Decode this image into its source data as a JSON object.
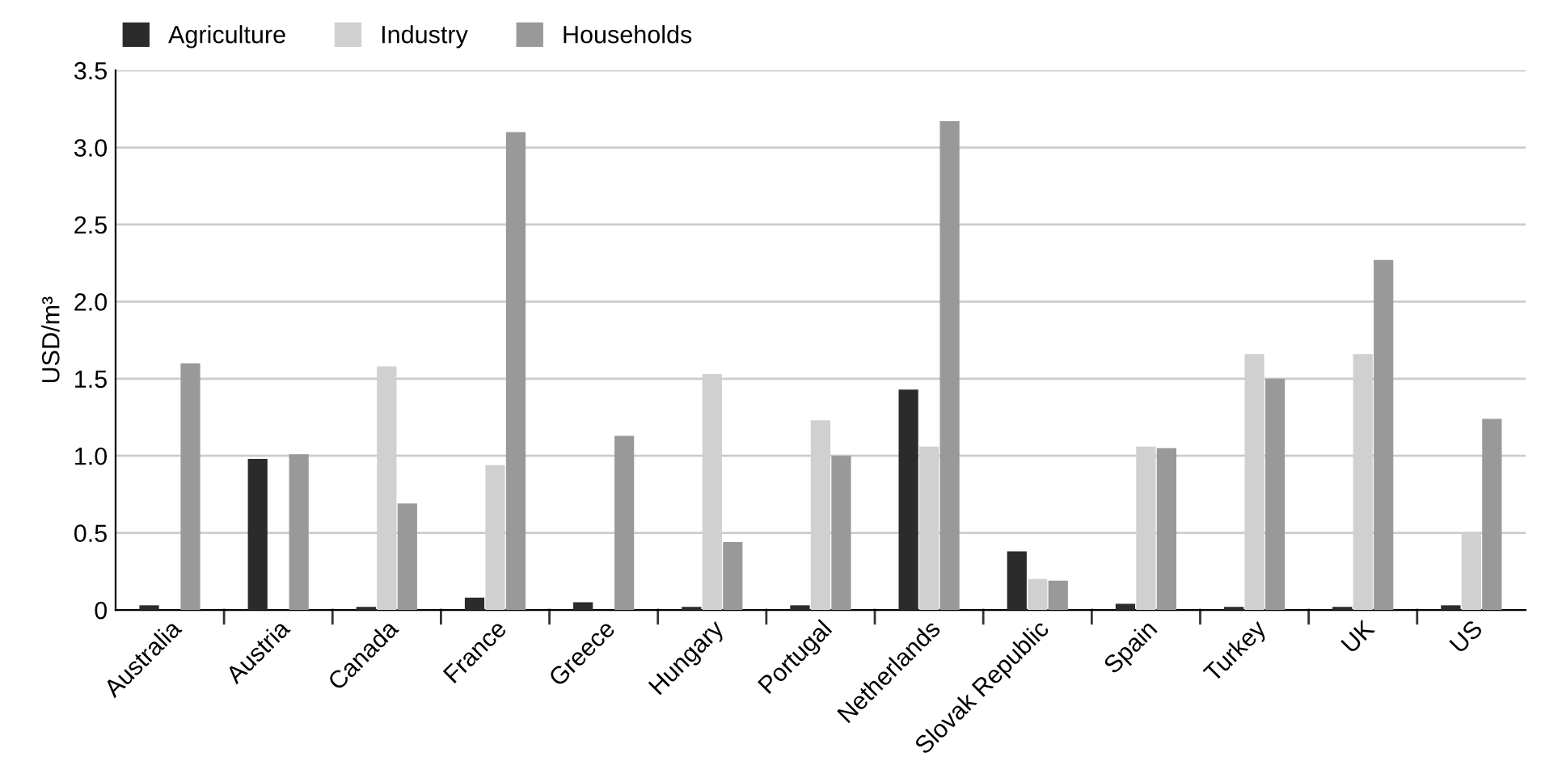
{
  "chart_data": {
    "type": "bar",
    "ylabel": "USD/m³",
    "categories": [
      "Australia",
      "Austria",
      "Canada",
      "France",
      "Greece",
      "Hungary",
      "Portugal",
      "Netherlands",
      "Slovak Republic",
      "Spain",
      "Turkey",
      "UK",
      "US"
    ],
    "series": [
      {
        "name": "Agriculture",
        "color": "#2b2b2b",
        "values": [
          0.03,
          0.98,
          0.02,
          0.08,
          0.05,
          0.02,
          0.03,
          1.43,
          0.38,
          0.04,
          0.02,
          0.02,
          0.03
        ]
      },
      {
        "name": "Industry",
        "color": "#d0d0d0",
        "values": [
          null,
          null,
          1.58,
          0.94,
          null,
          1.53,
          1.23,
          1.06,
          0.2,
          1.06,
          1.66,
          1.66,
          0.5
        ]
      },
      {
        "name": "Households",
        "color": "#999999",
        "values": [
          1.6,
          1.01,
          0.69,
          3.1,
          1.13,
          0.44,
          1.0,
          3.17,
          0.19,
          1.05,
          1.5,
          2.27,
          1.24
        ]
      }
    ],
    "ylim": [
      0,
      3.5
    ],
    "yticks": [
      0,
      0.5,
      {
        "value": 1,
        "label": "1.0"
      },
      1.5,
      {
        "value": 2,
        "label": "2.0"
      },
      2.5,
      {
        "value": 3,
        "label": "3.0"
      },
      3.5
    ],
    "grid": "y",
    "legend": "top left"
  }
}
